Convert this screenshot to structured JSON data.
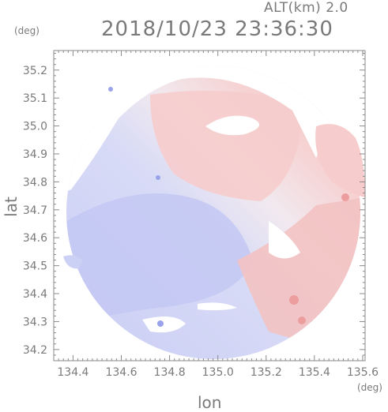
{
  "header": {
    "altitude_label": "ALT(km) 2.0",
    "datetime": "2018/10/23 23:36:30"
  },
  "axes": {
    "y_unit": "(deg)",
    "x_unit": "(deg)",
    "y_title": "lat",
    "x_title": "lon",
    "x_ticks": [
      "134.4",
      "134.6",
      "134.8",
      "135.0",
      "135.2",
      "135.4",
      "135.6"
    ],
    "y_ticks": [
      "35.2",
      "35.1",
      "35.0",
      "34.9",
      "34.8",
      "34.7",
      "34.6",
      "34.5",
      "34.4",
      "34.3",
      "34.2"
    ],
    "x_range": [
      134.32,
      135.61
    ],
    "y_range": [
      34.16,
      35.27
    ]
  },
  "colors": {
    "approaching": "#b9bff0",
    "receding": "#f4b7b7",
    "frame": "#888888"
  }
}
